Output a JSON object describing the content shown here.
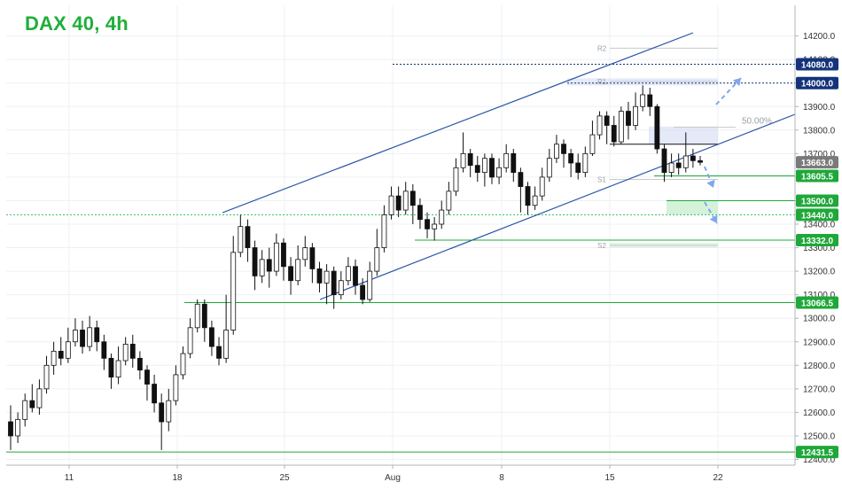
{
  "chart_data": {
    "type": "candlestick",
    "title": "DAX 40, 4h",
    "y_ticks": [
      12400,
      12500,
      12600,
      12700,
      12800,
      12900,
      13000,
      13100,
      13200,
      13300,
      13400,
      13500,
      13600,
      13700,
      13800,
      13900,
      14000,
      14100,
      14200
    ],
    "ylim": [
      12350,
      14280
    ],
    "x_ticks": [
      {
        "label": "11"
      },
      {
        "label": "18"
      },
      {
        "label": "25"
      },
      {
        "label": "Aug"
      },
      {
        "label": "8"
      },
      {
        "label": "15"
      },
      {
        "label": "22"
      }
    ],
    "price_badges": [
      {
        "label": "14080.0",
        "value": 14080,
        "color": "#14337a"
      },
      {
        "label": "14000.0",
        "value": 14000,
        "color": "#14337a"
      },
      {
        "label": "13663.0",
        "value": 13663,
        "color": "#7a7a7a"
      },
      {
        "label": "13605.5",
        "value": 13605.5,
        "color": "#1fa83a"
      },
      {
        "label": "13500.0",
        "value": 13500,
        "color": "#1fa83a"
      },
      {
        "label": "13440.0",
        "value": 13440,
        "color": "#1fa83a"
      },
      {
        "label": "13332.0",
        "value": 13332,
        "color": "#1fa83a"
      },
      {
        "label": "13066.5",
        "value": 13066.5,
        "color": "#1fa83a"
      },
      {
        "label": "12431.5",
        "value": 12431.5,
        "color": "#1fa83a"
      }
    ],
    "pivot_labels": [
      {
        "label": "R2",
        "value": 14148
      },
      {
        "label": "R1",
        "value": 14007
      },
      {
        "label": "S1",
        "value": 13590
      },
      {
        "label": "S2",
        "value": 13310
      }
    ],
    "fib_label": {
      "label": "50.00%",
      "value": 13812
    },
    "candles": [
      [
        12560,
        12500,
        12630,
        12440
      ],
      [
        12500,
        12570,
        12600,
        12470
      ],
      [
        12570,
        12650,
        12680,
        12540
      ],
      [
        12650,
        12620,
        12720,
        12600
      ],
      [
        12620,
        12700,
        12740,
        12590
      ],
      [
        12700,
        12800,
        12840,
        12680
      ],
      [
        12800,
        12860,
        12900,
        12760
      ],
      [
        12860,
        12830,
        12920,
        12800
      ],
      [
        12830,
        12900,
        12960,
        12810
      ],
      [
        12900,
        12950,
        13000,
        12880
      ],
      [
        12950,
        12880,
        12990,
        12850
      ],
      [
        12880,
        12960,
        13010,
        12860
      ],
      [
        12960,
        12900,
        12990,
        12860
      ],
      [
        12900,
        12830,
        12930,
        12780
      ],
      [
        12830,
        12750,
        12850,
        12700
      ],
      [
        12750,
        12820,
        12880,
        12720
      ],
      [
        12820,
        12890,
        12920,
        12800
      ],
      [
        12890,
        12830,
        12930,
        12790
      ],
      [
        12830,
        12780,
        12860,
        12740
      ],
      [
        12780,
        12720,
        12800,
        12650
      ],
      [
        12720,
        12640,
        12760,
        12600
      ],
      [
        12640,
        12560,
        12680,
        12440
      ],
      [
        12560,
        12650,
        12700,
        12520
      ],
      [
        12650,
        12760,
        12800,
        12630
      ],
      [
        12760,
        12850,
        12880,
        12740
      ],
      [
        12850,
        12960,
        13000,
        12830
      ],
      [
        12960,
        13060,
        13080,
        12940
      ],
      [
        13060,
        12960,
        13080,
        12900
      ],
      [
        12960,
        12880,
        12990,
        12840
      ],
      [
        12880,
        12830,
        12920,
        12800
      ],
      [
        12830,
        12950,
        13100,
        12810
      ],
      [
        12950,
        13280,
        13350,
        12930
      ],
      [
        13280,
        13390,
        13440,
        13260
      ],
      [
        13390,
        13300,
        13420,
        13240
      ],
      [
        13300,
        13180,
        13330,
        13120
      ],
      [
        13180,
        13250,
        13290,
        13150
      ],
      [
        13250,
        13200,
        13300,
        13130
      ],
      [
        13200,
        13320,
        13360,
        13180
      ],
      [
        13320,
        13220,
        13340,
        13160
      ],
      [
        13220,
        13160,
        13260,
        13100
      ],
      [
        13160,
        13250,
        13310,
        13140
      ],
      [
        13250,
        13300,
        13350,
        13220
      ],
      [
        13300,
        13210,
        13320,
        13150
      ],
      [
        13210,
        13150,
        13240,
        13110
      ],
      [
        13150,
        13200,
        13230,
        13060
      ],
      [
        13200,
        13100,
        13220,
        13040
      ],
      [
        13100,
        13160,
        13200,
        13080
      ],
      [
        13160,
        13220,
        13260,
        13140
      ],
      [
        13220,
        13140,
        13250,
        13100
      ],
      [
        13140,
        13080,
        13170,
        13060
      ],
      [
        13080,
        13200,
        13240,
        13070
      ],
      [
        13200,
        13300,
        13380,
        13180
      ],
      [
        13300,
        13440,
        13480,
        13280
      ],
      [
        13440,
        13520,
        13560,
        13420
      ],
      [
        13520,
        13460,
        13560,
        13430
      ],
      [
        13460,
        13540,
        13580,
        13440
      ],
      [
        13540,
        13480,
        13570,
        13400
      ],
      [
        13480,
        13420,
        13510,
        13380
      ],
      [
        13420,
        13380,
        13450,
        13340
      ],
      [
        13380,
        13400,
        13430,
        13330
      ],
      [
        13400,
        13460,
        13500,
        13380
      ],
      [
        13460,
        13540,
        13580,
        13440
      ],
      [
        13540,
        13640,
        13680,
        13520
      ],
      [
        13640,
        13700,
        13790,
        13620
      ],
      [
        13700,
        13650,
        13720,
        13600
      ],
      [
        13650,
        13620,
        13690,
        13580
      ],
      [
        13620,
        13680,
        13700,
        13560
      ],
      [
        13680,
        13600,
        13700,
        13570
      ],
      [
        13600,
        13640,
        13680,
        13570
      ],
      [
        13640,
        13700,
        13740,
        13620
      ],
      [
        13700,
        13620,
        13720,
        13580
      ],
      [
        13620,
        13560,
        13640,
        13450
      ],
      [
        13560,
        13480,
        13580,
        13440
      ],
      [
        13480,
        13520,
        13560,
        13460
      ],
      [
        13520,
        13600,
        13640,
        13500
      ],
      [
        13600,
        13680,
        13720,
        13580
      ],
      [
        13680,
        13740,
        13780,
        13660
      ],
      [
        13740,
        13700,
        13760,
        13640
      ],
      [
        13700,
        13660,
        13720,
        13600
      ],
      [
        13660,
        13620,
        13700,
        13590
      ],
      [
        13620,
        13700,
        13730,
        13600
      ],
      [
        13700,
        13780,
        13840,
        13690
      ],
      [
        13780,
        13860,
        13880,
        13760
      ],
      [
        13860,
        13820,
        13880,
        13740
      ],
      [
        13820,
        13750,
        13860,
        13730
      ],
      [
        13750,
        13880,
        13900,
        13740
      ],
      [
        13880,
        13820,
        13920,
        13760
      ],
      [
        13820,
        13900,
        13960,
        13800
      ],
      [
        13900,
        13950,
        13990,
        13880
      ],
      [
        13950,
        13900,
        13980,
        13860
      ],
      [
        13900,
        13720,
        13910,
        13700
      ],
      [
        13720,
        13620,
        13740,
        13580
      ],
      [
        13620,
        13660,
        13700,
        13600
      ],
      [
        13660,
        13640,
        13700,
        13610
      ],
      [
        13640,
        13690,
        13790,
        13620
      ],
      [
        13690,
        13670,
        13720,
        13640
      ],
      [
        13670,
        13663,
        13690,
        13650
      ]
    ]
  }
}
